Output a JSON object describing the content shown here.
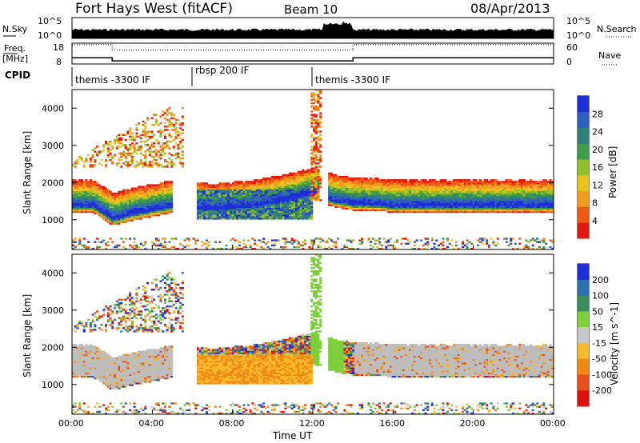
{
  "header": {
    "station": "Fort Hays West (fitACF)",
    "beam": "Beam 10",
    "date": "08/Apr/2013"
  },
  "strip_labels": {
    "nsky": "N.Sky",
    "freq_line1": "Freq.",
    "freq_line2": "[MHz]",
    "cpid": "CPID",
    "nsearch": "N.Search",
    "nave": "Nave",
    "nsky_ticks": [
      "10^5",
      "10^0"
    ],
    "nsearch_ticks": [
      "10^5",
      "10^0"
    ],
    "freq_ticks": [
      "18",
      "8"
    ],
    "nave_ticks": [
      "60",
      "0"
    ]
  },
  "colors": {
    "power_scale": [
      "#1f2fd6",
      "#2f5fbf",
      "#2e7f7a",
      "#3f9a4a",
      "#8fbf2a",
      "#e8c320",
      "#f29a1a",
      "#ee5a14",
      "#e21a10"
    ],
    "velocity_scale": [
      "#1f2fd6",
      "#2e6fb0",
      "#3a8c5a",
      "#7ccf3a",
      "#c8c8c8",
      "#f5b82a",
      "#f08a14",
      "#e8501a",
      "#e01010"
    ],
    "ground_scatter": "#bdbdbd"
  },
  "chart_data": [
    {
      "type": "line",
      "panel": "N.Sky / N.Search",
      "title": "",
      "xlabel": "",
      "ylabel": "N.Sky",
      "y2label": "N.Search",
      "scale": "log",
      "ylim": [
        1,
        100000
      ],
      "xlim_hours": [
        0,
        24
      ]
    },
    {
      "type": "line",
      "panel": "Freq. / Nave",
      "title": "",
      "ylabel": "Freq. [MHz]",
      "ylim": [
        8,
        18
      ],
      "y2label": "Nave",
      "y2lim": [
        0,
        60
      ],
      "series": [
        {
          "name": "Freq.",
          "x": [
            "00:00",
            "02:00",
            "02:00",
            "14:00",
            "14:00",
            "24:00"
          ],
          "values": [
            11,
            11,
            9.5,
            9.5,
            11,
            11
          ]
        },
        {
          "name": "Nave",
          "x": [
            "00:00",
            "02:00",
            "02:00",
            "14:00",
            "14:00",
            "24:00"
          ],
          "values": [
            56,
            56,
            40,
            40,
            56,
            56
          ]
        }
      ]
    },
    {
      "type": "table",
      "panel": "CPID",
      "segments": [
        {
          "label": "themis -3300 IF",
          "start": "00:00",
          "end": "06:00"
        },
        {
          "label": "rbsp 200 IF",
          "start": "06:00",
          "end": "12:00"
        },
        {
          "label": "themis -3300 IF",
          "start": "12:00",
          "end": "24:00"
        }
      ]
    },
    {
      "type": "heatmap",
      "panel": "Power",
      "ylabel": "Slant Range [km]",
      "ylim": [
        200,
        4500
      ],
      "yticks": [
        "1000",
        "2000",
        "3000",
        "4000"
      ],
      "colorbar_label": "Power [dB]",
      "colorbar_ticks": [
        "4",
        "8",
        "12",
        "16",
        "20",
        "24",
        "28"
      ],
      "colorbar_range": [
        0,
        32
      ],
      "ridge_km": [
        [
          0,
          1350
        ],
        [
          1,
          1350
        ],
        [
          2,
          1000
        ],
        [
          3,
          1150
        ],
        [
          4,
          1250
        ],
        [
          5,
          1350
        ],
        [
          6,
          1300
        ],
        [
          7,
          1250
        ],
        [
          8,
          1300
        ],
        [
          9,
          1350
        ],
        [
          10,
          1450
        ],
        [
          11,
          1550
        ],
        [
          12,
          1700
        ],
        [
          13,
          1500
        ],
        [
          14,
          1400
        ],
        [
          15,
          1400
        ],
        [
          16,
          1350
        ],
        [
          17,
          1350
        ],
        [
          18,
          1350
        ],
        [
          19,
          1350
        ],
        [
          20,
          1350
        ],
        [
          21,
          1350
        ],
        [
          22,
          1350
        ],
        [
          23,
          1350
        ],
        [
          24,
          1350
        ]
      ]
    },
    {
      "type": "heatmap",
      "panel": "Velocity",
      "ylabel": "Slant Range [km]",
      "ylim": [
        200,
        4500
      ],
      "yticks": [
        "1000",
        "2000",
        "3000",
        "4000"
      ],
      "colorbar_label": "Velocity [m s^-1]",
      "colorbar_ticks": [
        "200",
        "100",
        "50",
        "15",
        "-15",
        "-50",
        "-100",
        "-200"
      ],
      "colorbar_range": [
        -250,
        250
      ]
    }
  ],
  "xaxis": {
    "label": "Time UT",
    "ticks": [
      "00:00",
      "04:00",
      "08:00",
      "12:00",
      "16:00",
      "20:00",
      "00:00"
    ]
  }
}
